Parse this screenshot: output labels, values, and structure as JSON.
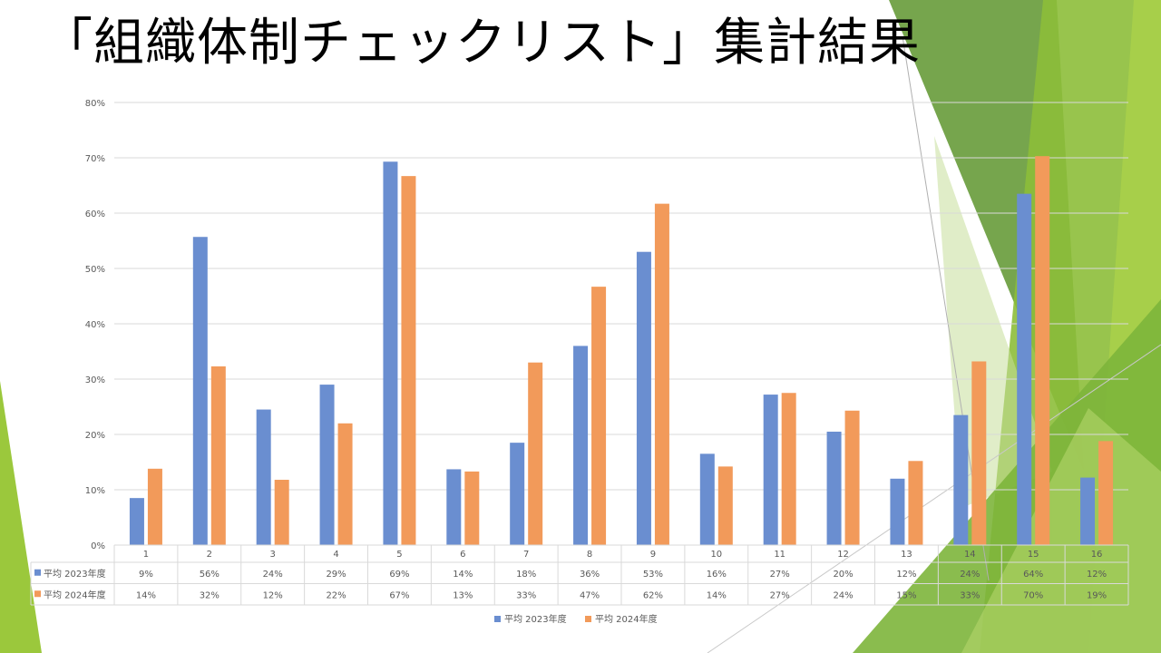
{
  "slide": {
    "title": "「組織体制チェックリスト」集計結果"
  },
  "colors": {
    "series_2023": "#6A8ED0",
    "series_2024": "#F29A5A",
    "gridline": "#D9D9D9",
    "axis_text": "#595959",
    "accent_green_light": "#9BC83C",
    "accent_green_dark": "#4F8A2A"
  },
  "chart_data": {
    "type": "bar",
    "title": "",
    "xlabel": "",
    "ylabel": "",
    "categories": [
      "1",
      "2",
      "3",
      "4",
      "5",
      "6",
      "7",
      "8",
      "9",
      "10",
      "11",
      "12",
      "13",
      "14",
      "15",
      "16"
    ],
    "y_ticks": [
      "0%",
      "10%",
      "20%",
      "30%",
      "40%",
      "50%",
      "60%",
      "70%",
      "80%"
    ],
    "ylim": [
      0,
      0.8
    ],
    "grid": true,
    "legend_position": "bottom",
    "data_table": true,
    "series": [
      {
        "name": "平均 2023年度",
        "values": [
          0.085,
          0.557,
          0.245,
          0.29,
          0.693,
          0.137,
          0.185,
          0.36,
          0.53,
          0.165,
          0.272,
          0.205,
          0.12,
          0.235,
          0.635,
          0.122
        ],
        "labels": [
          "9%",
          "56%",
          "24%",
          "29%",
          "69%",
          "14%",
          "18%",
          "36%",
          "53%",
          "16%",
          "27%",
          "20%",
          "12%",
          "24%",
          "64%",
          "12%"
        ]
      },
      {
        "name": "平均 2024年度",
        "values": [
          0.138,
          0.323,
          0.118,
          0.22,
          0.667,
          0.133,
          0.33,
          0.467,
          0.617,
          0.142,
          0.275,
          0.243,
          0.152,
          0.332,
          0.703,
          0.188
        ],
        "labels": [
          "14%",
          "32%",
          "12%",
          "22%",
          "67%",
          "13%",
          "33%",
          "47%",
          "62%",
          "14%",
          "27%",
          "24%",
          "15%",
          "33%",
          "70%",
          "19%"
        ]
      }
    ]
  }
}
